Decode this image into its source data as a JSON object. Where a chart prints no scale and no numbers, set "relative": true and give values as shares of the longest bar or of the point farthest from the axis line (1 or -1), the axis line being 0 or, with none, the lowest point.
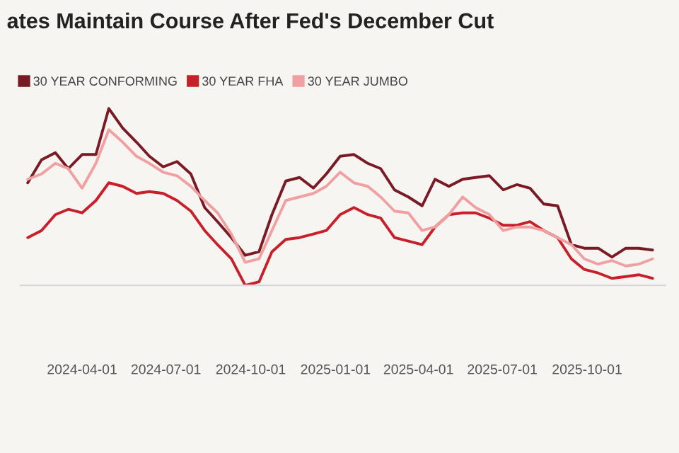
{
  "chart_data": {
    "type": "line",
    "title": "ates Maintain Course After Fed's December Cut",
    "relative": true,
    "legend": "top left",
    "grid": false,
    "x": [
      "2024-02-02",
      "2024-02-17",
      "2024-03-03",
      "2024-03-17",
      "2024-04-01",
      "2024-04-16",
      "2024-04-30",
      "2024-05-15",
      "2024-05-30",
      "2024-06-13",
      "2024-06-28",
      "2024-07-13",
      "2024-07-28",
      "2024-08-12",
      "2024-08-26",
      "2024-09-10",
      "2024-09-25",
      "2024-10-10",
      "2024-10-24",
      "2024-11-08",
      "2024-11-23",
      "2024-12-08",
      "2024-12-22",
      "2025-01-06",
      "2025-01-21",
      "2025-02-05",
      "2025-02-19",
      "2025-03-06",
      "2025-03-21",
      "2025-04-05",
      "2025-04-19",
      "2025-05-04",
      "2025-05-19",
      "2025-06-02",
      "2025-06-17",
      "2025-07-02",
      "2025-07-17",
      "2025-07-31",
      "2025-08-15",
      "2025-08-30",
      "2025-09-14",
      "2025-09-28",
      "2025-10-13",
      "2025-10-28",
      "2025-11-12",
      "2025-11-26",
      "2025-12-11"
    ],
    "xlim": [
      "2024-01-25",
      "2025-12-25"
    ],
    "xticks": [
      {
        "value": "2024-04-01",
        "label": "2024-04-01"
      },
      {
        "value": "2024-07-01",
        "label": "2024-07-01"
      },
      {
        "value": "2024-10-01",
        "label": "2024-10-01"
      },
      {
        "value": "2025-01-01",
        "label": "2025-01-01"
      },
      {
        "value": "2025-04-01",
        "label": "2025-04-01"
      },
      {
        "value": "2025-07-01",
        "label": "2025-07-01"
      },
      {
        "value": "2025-10-01",
        "label": "2025-10-01"
      }
    ],
    "series": [
      {
        "name": "30 YEAR CONFORMING",
        "color": "#7a1a24",
        "values": [
          0.58,
          0.71,
          0.75,
          0.66,
          0.74,
          0.74,
          1.0,
          0.89,
          0.81,
          0.73,
          0.67,
          0.7,
          0.63,
          0.44,
          0.36,
          0.27,
          0.17,
          0.19,
          0.4,
          0.59,
          0.61,
          0.55,
          0.63,
          0.73,
          0.74,
          0.69,
          0.66,
          0.54,
          0.5,
          0.45,
          0.6,
          0.56,
          0.6,
          0.61,
          0.62,
          0.54,
          0.57,
          0.55,
          0.46,
          0.45,
          0.23,
          0.21,
          0.21,
          0.16,
          0.21,
          0.21,
          0.2
        ]
      },
      {
        "name": "30 YEAR FHA",
        "color": "#c8202a",
        "values": [
          0.27,
          0.31,
          0.4,
          0.43,
          0.41,
          0.48,
          0.58,
          0.56,
          0.52,
          0.53,
          0.52,
          0.48,
          0.42,
          0.31,
          0.23,
          0.15,
          0,
          0.02,
          0.19,
          0.26,
          0.27,
          0.29,
          0.31,
          0.4,
          0.44,
          0.4,
          0.38,
          0.27,
          0.25,
          0.23,
          0.33,
          0.4,
          0.41,
          0.41,
          0.38,
          0.34,
          0.34,
          0.36,
          0.31,
          0.27,
          0.15,
          0.09,
          0.07,
          0.04,
          0.05,
          0.06,
          0.04
        ]
      },
      {
        "name": "30 YEAR JUMBO",
        "color": "#f0a0a0",
        "values": [
          0.6,
          0.63,
          0.69,
          0.66,
          0.55,
          0.69,
          0.88,
          0.81,
          0.73,
          0.69,
          0.64,
          0.62,
          0.56,
          0.48,
          0.41,
          0.29,
          0.13,
          0.15,
          0.31,
          0.48,
          0.5,
          0.52,
          0.56,
          0.64,
          0.58,
          0.56,
          0.5,
          0.42,
          0.41,
          0.31,
          0.33,
          0.4,
          0.5,
          0.44,
          0.4,
          0.31,
          0.33,
          0.33,
          0.31,
          0.27,
          0.23,
          0.15,
          0.12,
          0.14,
          0.11,
          0.12,
          0.15
        ]
      }
    ]
  }
}
